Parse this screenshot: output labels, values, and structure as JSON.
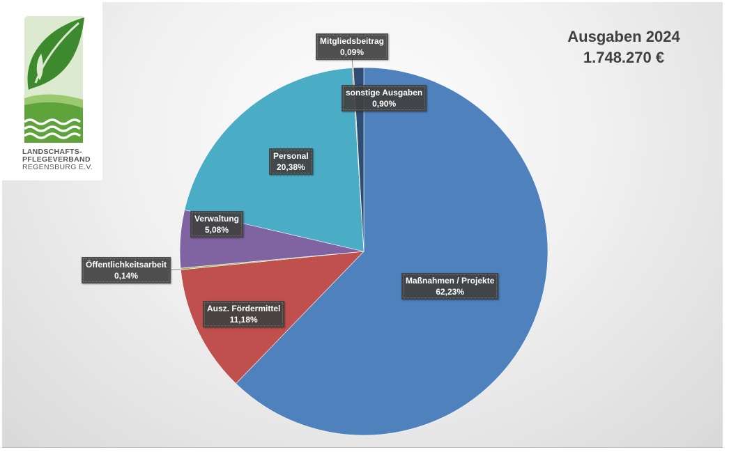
{
  "logo": {
    "line1": "LANDSCHAFTS-",
    "line2": "PFLEGEVERBAND",
    "line3": "REGENSBURG E.V."
  },
  "colors": {
    "background_gradient_center": "#fdfdfd",
    "background_gradient_edge": "#d9d9d9",
    "label_box": "#404040",
    "logo_green": "#3d8a2e",
    "logo_light_green": "#8fc46a"
  },
  "chart_data": {
    "type": "pie",
    "title": "Ausgaben 2024",
    "subtitle": "1.748.270 €",
    "legend": "none",
    "slices": [
      {
        "label": "Maßnahmen / Projekte",
        "value": 62.23,
        "value_text": "62,23%",
        "color": "#4f81bd"
      },
      {
        "label": "Ausz. Fördermittel",
        "value": 11.18,
        "value_text": "11,18%",
        "color": "#c0504d"
      },
      {
        "label": "Öffentlichkeitsarbeit",
        "value": 0.14,
        "value_text": "0,14%",
        "color": "#9bbb59"
      },
      {
        "label": "Verwaltung",
        "value": 5.08,
        "value_text": "5,08%",
        "color": "#8064a2"
      },
      {
        "label": "Personal",
        "value": 20.38,
        "value_text": "20,38%",
        "color": "#4bacc6"
      },
      {
        "label": "Mitgliedsbeitrag",
        "value": 0.09,
        "value_text": "0,09%",
        "color": "#f79646"
      },
      {
        "label": "sonstige Ausgaben",
        "value": 0.9,
        "value_text": "0,90%",
        "color": "#2c4d75"
      }
    ]
  }
}
